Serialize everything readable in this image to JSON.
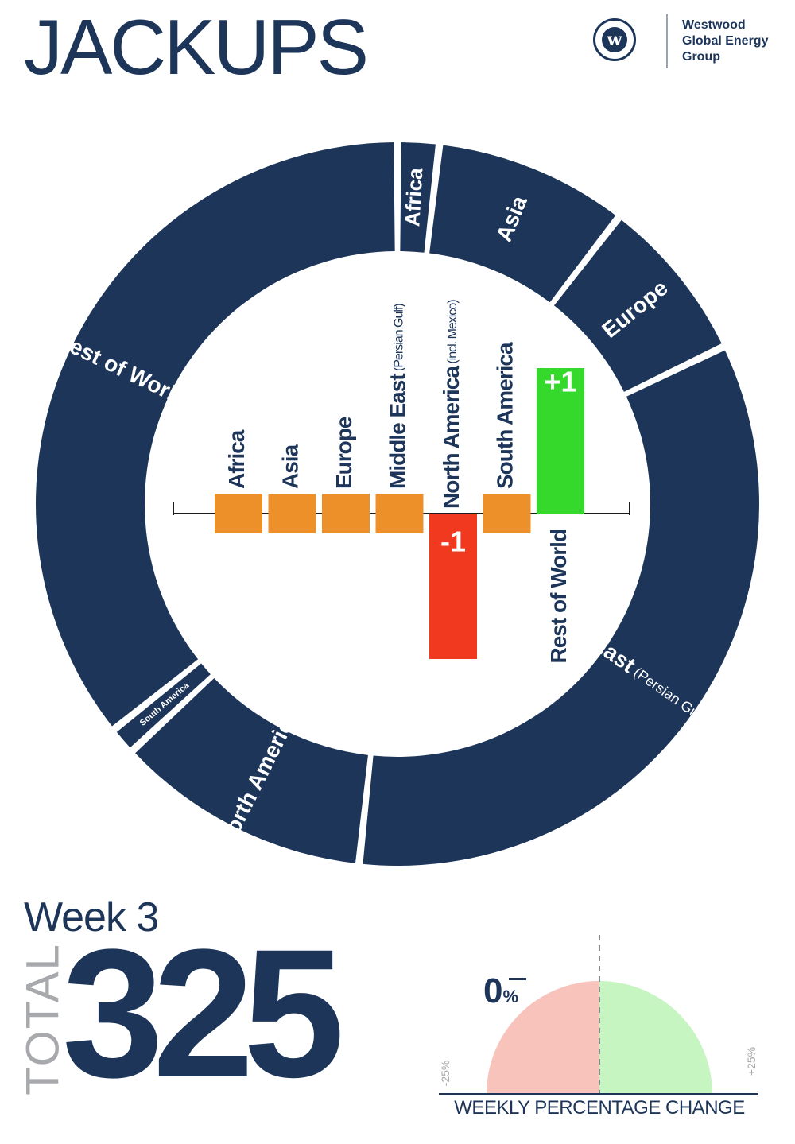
{
  "page": {
    "title": "JACKUPS",
    "brand": "Westwood Global Energy Group",
    "brand_lines": [
      "Westwood",
      "Global Energy",
      "Group"
    ],
    "logo_letter": "w",
    "week": "Week 3",
    "total_label": "TOTAL",
    "total_value": "325",
    "weekly_change": "0",
    "weekly_change_unit": "%",
    "gauge_min": "-25%",
    "gauge_max": "+25%",
    "gauge_caption": "WEEKLY PERCENTAGE CHANGE"
  },
  "colors": {
    "navy": "#1c3559",
    "orange": "#ee9029",
    "red": "#f0391f",
    "green": "#35d92c",
    "gauge_negative": "#f7c3bb",
    "gauge_positive": "#c6f5c2",
    "grey": "#a7a9ac"
  },
  "chart_data": [
    {
      "type": "pie",
      "style": "donut",
      "labels": [
        {
          "region": "Africa",
          "label": "Africa",
          "sub": ""
        },
        {
          "region": "Asia",
          "label": "Asia",
          "sub": ""
        },
        {
          "region": "Europe",
          "label": "Europe",
          "sub": ""
        },
        {
          "region": "Middle East",
          "label": "Middle East",
          "sub": "(Persian Gulf & Red Sea)"
        },
        {
          "region": "North America",
          "label": "North America",
          "sub": ""
        },
        {
          "region": "South America",
          "label": "South America",
          "sub": ""
        },
        {
          "region": "Rest of World",
          "label": "Rest of World",
          "sub": ""
        }
      ],
      "values": [
        6,
        28,
        24,
        110,
        37,
        4,
        116
      ]
    },
    {
      "type": "bar",
      "categories": [
        "Africa",
        "Asia",
        "Europe",
        "Middle East",
        "North America",
        "South America",
        "Rest of World"
      ],
      "category_labels": [
        {
          "main": "Africa",
          "sub": ""
        },
        {
          "main": "Asia",
          "sub": ""
        },
        {
          "main": "Europe",
          "sub": ""
        },
        {
          "main": "Middle East",
          "sub": "(Persian Gulf)"
        },
        {
          "main": "North America",
          "sub": "(incl. Mexico)"
        },
        {
          "main": "South America",
          "sub": ""
        },
        {
          "main": "Rest of World",
          "sub": ""
        }
      ],
      "values": [
        0,
        0,
        0,
        0,
        -1,
        0,
        1
      ],
      "value_labels": [
        "",
        "",
        "",
        "",
        "-1",
        "",
        "+1"
      ]
    }
  ]
}
